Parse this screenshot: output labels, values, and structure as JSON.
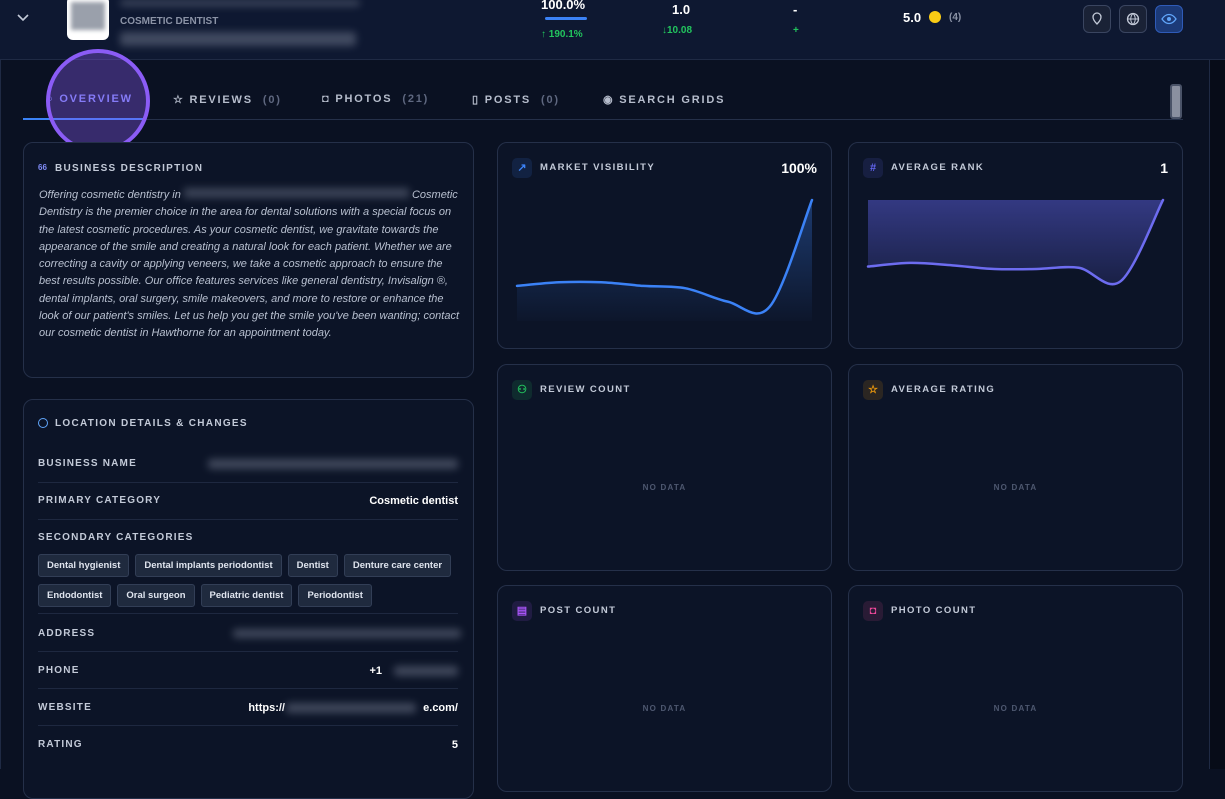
{
  "header": {
    "category": "COSMETIC DENTIST",
    "visibility": "100.0%",
    "visibility_change": "190.1%",
    "rank": "1.0",
    "rank_change": "10.08",
    "reviews": "-",
    "reviews_change": "+",
    "rating": "5.0",
    "rating_count": "(4)"
  },
  "tabs": [
    {
      "label": "OVERVIEW"
    },
    {
      "label": "REVIEWS",
      "count": "(0)"
    },
    {
      "label": "PHOTOS",
      "count": "(21)"
    },
    {
      "label": "POSTS",
      "count": "(0)"
    },
    {
      "label": "SEARCH GRIDS"
    }
  ],
  "description": {
    "title": "BUSINESS DESCRIPTION",
    "text_start": "Offering cosmetic dentistry in",
    "text_rest": "Cosmetic Dentistry is the premier choice in the area for dental solutions with a special focus on the latest cosmetic procedures. As your cosmetic dentist, we gravitate towards the appearance of the smile and creating a natural look for each patient. Whether we are correcting a cavity or applying veneers, we take a cosmetic approach to ensure the best results possible. Our office features services like general dentistry, Invisalign ®, dental implants, oral surgery, smile makeovers, and more to restore or enhance the look of our patient's smiles. Let us help you get the smile you've been wanting; contact our cosmetic dentist in Hawthorne for an appointment today."
  },
  "location": {
    "title": "LOCATION DETAILS & CHANGES",
    "business_name": "BUSINESS NAME",
    "primary_category": {
      "label": "PRIMARY CATEGORY",
      "value": "Cosmetic dentist"
    },
    "secondary_categories": {
      "label": "SECONDARY CATEGORIES",
      "items": [
        "Dental hygienist",
        "Dental implants periodontist",
        "Dentist",
        "Denture care center",
        "Endodontist",
        "Oral surgeon",
        "Pediatric dentist",
        "Periodontist"
      ]
    },
    "address": "ADDRESS",
    "phone": {
      "label": "PHONE",
      "value": "+1"
    },
    "website": {
      "label": "WEBSITE",
      "value_start": "https://",
      "value_end": "e.com/"
    },
    "rating": {
      "label": "RATING",
      "value": "5"
    }
  },
  "cards": [
    {
      "title": "MARKET VISIBILITY",
      "value": "100%",
      "trend": [
        29,
        32,
        32,
        29,
        27,
        16,
        12,
        100
      ]
    },
    {
      "title": "AVERAGE RANK",
      "value": "1",
      "trend": [
        45,
        48,
        46,
        43,
        43,
        44,
        33,
        100
      ]
    },
    {
      "title": "REVIEW COUNT",
      "empty": "NO DATA"
    },
    {
      "title": "AVERAGE RATING",
      "empty": "NO DATA"
    },
    {
      "title": "POST COUNT",
      "empty": "NO DATA"
    },
    {
      "title": "PHOTO COUNT",
      "empty": "NO DATA"
    }
  ]
}
